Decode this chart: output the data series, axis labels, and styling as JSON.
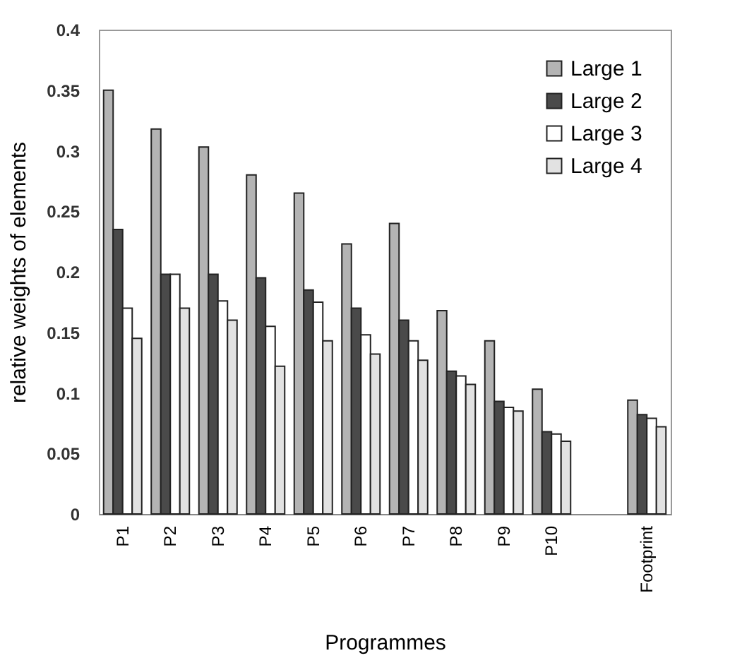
{
  "chart_data": {
    "type": "bar",
    "xlabel": "Programmes",
    "ylabel": "relative weights of elements",
    "categories": [
      "P1",
      "P2",
      "P3",
      "P4",
      "P5",
      "P6",
      "P7",
      "P8",
      "P9",
      "P10",
      null,
      "Footprint"
    ],
    "series": [
      {
        "name": "Large 1",
        "color": "#b4b4b4",
        "values": [
          0.35,
          0.318,
          0.303,
          0.28,
          0.265,
          0.223,
          0.24,
          0.168,
          0.143,
          0.103,
          null,
          0.094
        ]
      },
      {
        "name": "Large 2",
        "color": "#4a4a4a",
        "values": [
          0.235,
          0.198,
          0.198,
          0.195,
          0.185,
          0.17,
          0.16,
          0.118,
          0.093,
          0.068,
          null,
          0.082
        ]
      },
      {
        "name": "Large 3",
        "color": "#ffffff",
        "values": [
          0.17,
          0.198,
          0.176,
          0.155,
          0.175,
          0.148,
          0.143,
          0.114,
          0.088,
          0.066,
          null,
          0.079
        ]
      },
      {
        "name": "Large 4",
        "color": "#e2e2e2",
        "values": [
          0.145,
          0.17,
          0.16,
          0.122,
          0.143,
          0.132,
          0.127,
          0.107,
          0.085,
          0.06,
          null,
          0.072
        ]
      }
    ],
    "ylim": [
      0,
      0.4
    ],
    "yticks": [
      0,
      0.05,
      0.1,
      0.15,
      0.2,
      0.25,
      0.3,
      0.35,
      0.4
    ],
    "legend": "top right",
    "grid": false
  }
}
